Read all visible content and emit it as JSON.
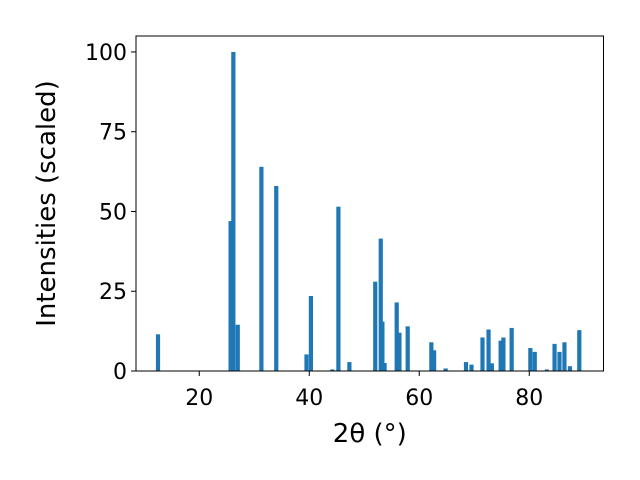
{
  "chart_data": {
    "type": "bar",
    "xlabel": "2θ (°)",
    "ylabel": "Intensities (scaled)",
    "xlim": [
      8.5,
      93.5
    ],
    "ylim": [
      0,
      105
    ],
    "xticks": [
      20,
      40,
      60,
      80
    ],
    "yticks": [
      0,
      25,
      50,
      75,
      100
    ],
    "grid": false,
    "bar_color": "#1f77b4",
    "x": [
      12.5,
      25.7,
      26.2,
      27.0,
      31.3,
      34.0,
      39.5,
      40.3,
      44.2,
      45.3,
      47.3,
      52.0,
      53.0,
      53.3,
      53.7,
      55.9,
      56.4,
      57.9,
      62.2,
      62.7,
      64.8,
      68.5,
      69.5,
      71.5,
      72.6,
      73.2,
      74.8,
      75.3,
      76.8,
      80.2,
      81.0,
      83.2,
      84.6,
      85.5,
      86.4,
      87.4,
      89.1
    ],
    "values": [
      11.5,
      47.0,
      100,
      14.5,
      64,
      58,
      5.2,
      23.5,
      0.5,
      51.5,
      2.8,
      28,
      41.5,
      15.5,
      2.5,
      21.5,
      12,
      14,
      9,
      6.5,
      0.8,
      2.8,
      2,
      10.5,
      13,
      2.4,
      9.5,
      10.5,
      13.5,
      7.2,
      6,
      0.5,
      8.5,
      6,
      9,
      1.5,
      12.8
    ]
  }
}
